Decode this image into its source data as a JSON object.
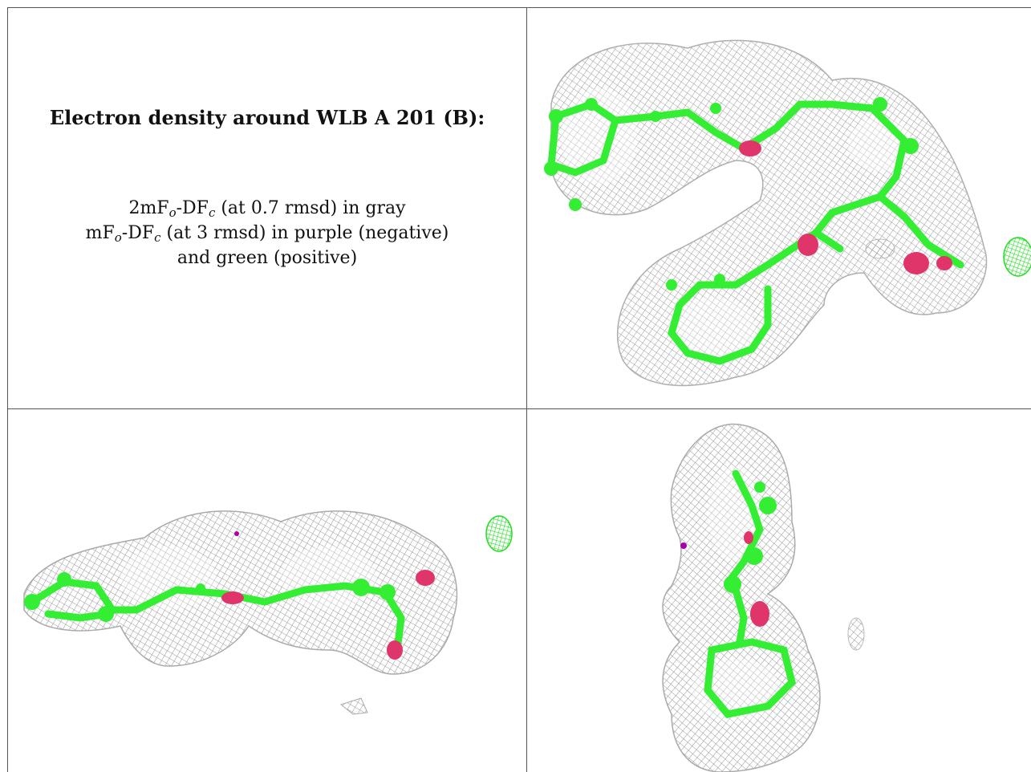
{
  "heading": "Electron density around WLB A 201 (B):",
  "legend": {
    "line1": {
      "a": "2mF",
      "b": "o",
      "c": "-DF",
      "d": "c",
      "e": " (at 0.7 rmsd) in gray"
    },
    "line2": {
      "a": "mF",
      "b": "o",
      "c": "-DF",
      "d": "c",
      "e": " (at 3 rmsd) in purple (negative)"
    },
    "line3": "and green (positive)"
  },
  "colors": {
    "mesh_gray": "#9a9a9a",
    "bond_green": "#33ee33",
    "oxygen_red": "#e0356a",
    "neg_purple": "#aa00aa",
    "pos_green": "#22dd22"
  },
  "panels": [
    {
      "name": "view-top-right",
      "description_id": "density-view-1"
    },
    {
      "name": "view-bottom-left",
      "description_id": "density-view-2"
    },
    {
      "name": "view-bottom-right",
      "description_id": "density-view-3"
    }
  ]
}
